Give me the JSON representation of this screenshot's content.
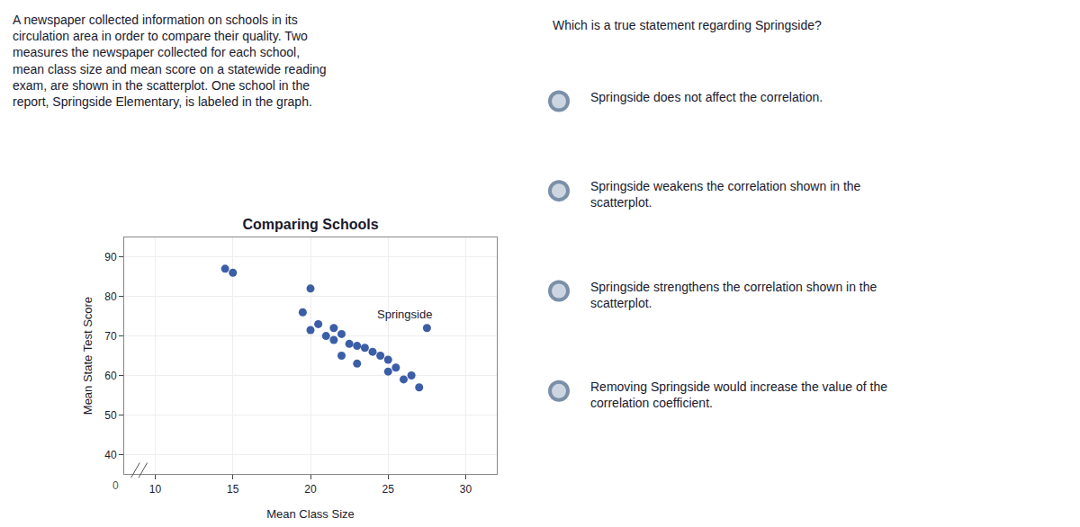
{
  "chart_data": {
    "type": "scatter",
    "title": "Comparing Schools",
    "xlabel": "Mean Class Size",
    "ylabel": "Mean State Test Score",
    "color": "#3b5ea6",
    "x": [
      14.5,
      15.0,
      20.0,
      19.5,
      20.5,
      21.5,
      20.0,
      21.0,
      22.0,
      21.5,
      22.5,
      23.0,
      22.0,
      23.5,
      24.0,
      23.0,
      24.5,
      25.0,
      25.5,
      26.0,
      25.0,
      27.0,
      26.5,
      27.5
    ],
    "values": [
      87.0,
      86.0,
      82.0,
      76.0,
      73.0,
      72.0,
      71.5,
      70.0,
      70.5,
      69.0,
      68.0,
      67.5,
      65.0,
      67.0,
      66.0,
      63.0,
      65.0,
      64.0,
      62.0,
      59.0,
      61.0,
      57.0,
      60.0,
      72.0
    ],
    "xlim": [
      8,
      32
    ],
    "ylim": [
      35,
      95
    ],
    "xticks": [
      10,
      15,
      20,
      25,
      30
    ],
    "yticks": [
      40,
      50,
      60,
      70,
      80,
      90
    ],
    "grid": true,
    "annotations": [
      {
        "text": "Springside",
        "x": 27.5,
        "y": 72.0
      },
      {
        "text": "0",
        "x": 8,
        "y": 35
      },
      {
        "text": "A newspaper collected information on schools in its\ncirculation area in order to compare their quality. Two\nmeasures the newspaper collected for each school,\nmean class size and mean score on a statewide reading\nexam, are shown in the scatterplot. One school in the\nreport, Springside Elementary, is labeled in the graph."
      },
      {
        "text": "Which is a true statement regarding Springside?"
      },
      {
        "text": "Springside does not affect the correlation."
      },
      {
        "text": "Springside weakens the correlation shown in the\nscatterplot."
      },
      {
        "text": "Springside strengthens the correlation shown in the\nscatterplot."
      },
      {
        "text": "Removing Springside would increase the value of the\ncorrelation coefficient."
      }
    ]
  }
}
